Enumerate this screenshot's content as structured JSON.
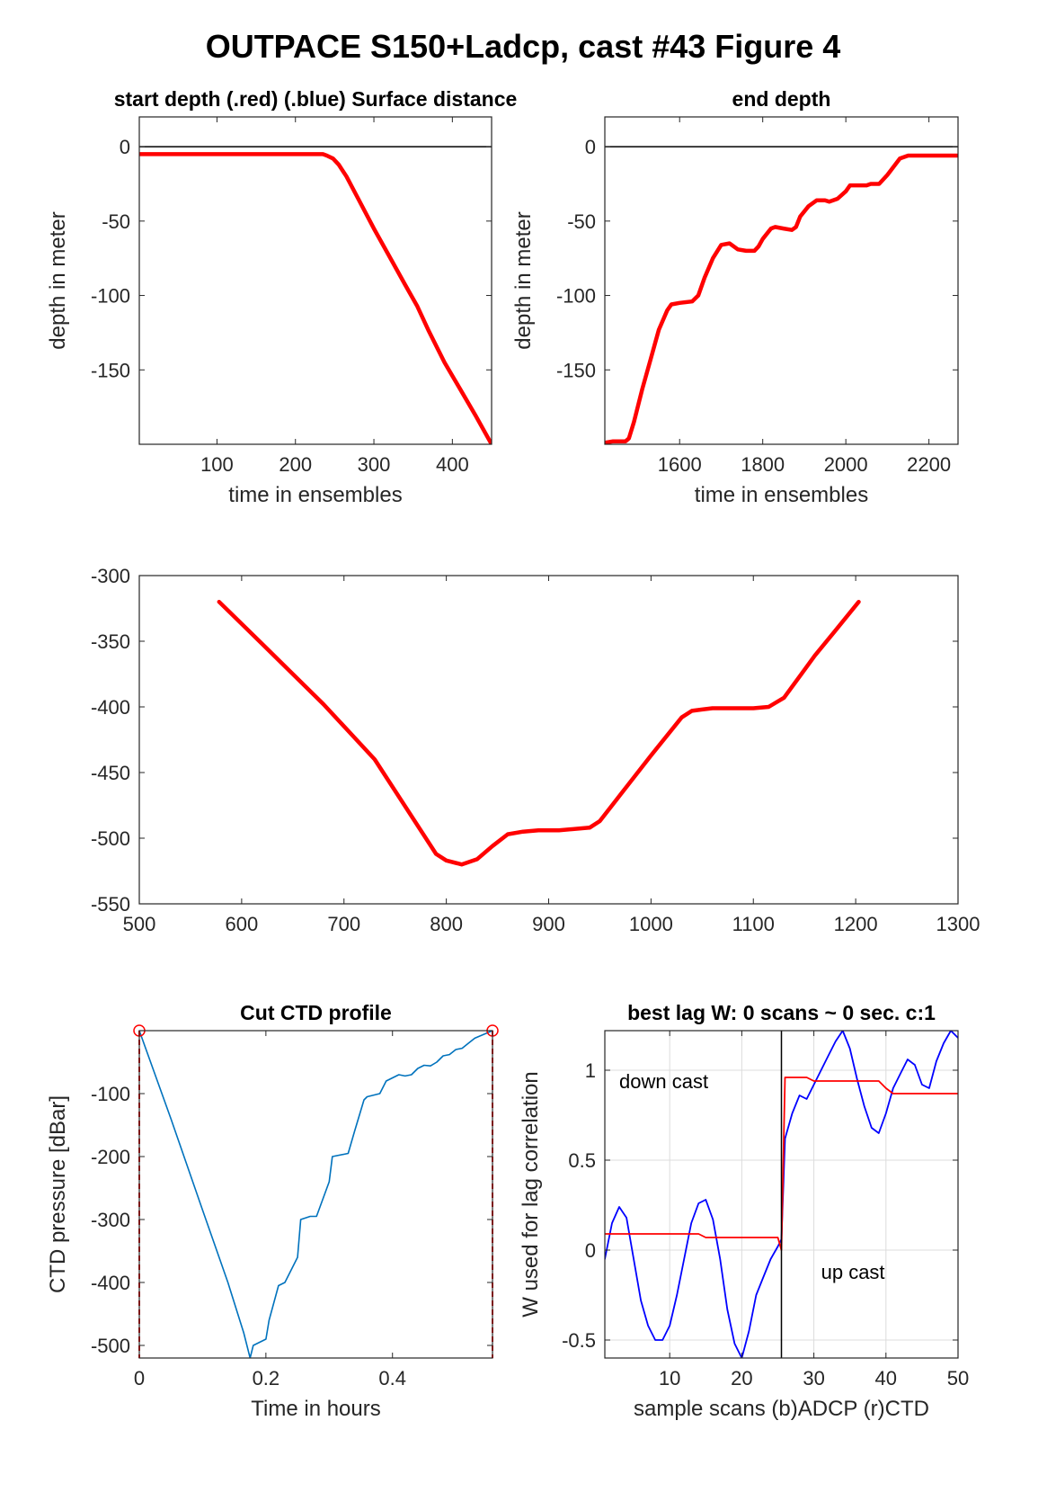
{
  "figure_title": "OUTPACE S150+Ladcp, cast #43   Figure 4",
  "colors": {
    "red": "#ff0000",
    "blue": "#0000ff",
    "ctd": "#0072bd",
    "axis": "#262626",
    "zero": "#000000",
    "grid": "#dcdcdc"
  },
  "chart_data": [
    {
      "id": "start_depth",
      "type": "line",
      "title": "start depth (.red) (.blue) Surface distance",
      "xlabel": "time in ensembles",
      "ylabel": "depth in meter",
      "xlim": [
        1,
        450
      ],
      "ylim": [
        -200,
        20
      ],
      "xticks": [
        100,
        200,
        300,
        400
      ],
      "yticks": [
        0,
        -50,
        -100,
        -150
      ],
      "hline": 0,
      "series": [
        {
          "color": "#ff0000",
          "x": [
            1,
            100,
            200,
            235,
            240,
            248,
            255,
            265,
            280,
            300,
            320,
            340,
            355,
            370,
            390,
            410,
            430,
            450
          ],
          "y": [
            -5,
            -5,
            -5,
            -5,
            -6,
            -8,
            -12,
            -20,
            -35,
            -55,
            -74,
            -93,
            -107,
            -124,
            -145,
            -163,
            -181,
            -200
          ]
        }
      ]
    },
    {
      "id": "end_depth",
      "type": "line",
      "title": "end depth",
      "xlabel": "time in ensembles",
      "ylabel": "depth in meter",
      "xlim": [
        1420,
        2270
      ],
      "ylim": [
        -200,
        20
      ],
      "xticks": [
        1600,
        1800,
        2000,
        2200
      ],
      "yticks": [
        0,
        -50,
        -100,
        -150
      ],
      "hline": 0,
      "series": [
        {
          "color": "#ff0000",
          "x": [
            1420,
            1440,
            1470,
            1478,
            1490,
            1510,
            1530,
            1550,
            1570,
            1580,
            1600,
            1630,
            1645,
            1660,
            1680,
            1700,
            1720,
            1740,
            1760,
            1780,
            1790,
            1800,
            1820,
            1830,
            1850,
            1870,
            1880,
            1890,
            1910,
            1930,
            1950,
            1960,
            1980,
            2000,
            2010,
            2050,
            2060,
            2080,
            2100,
            2130,
            2150,
            2200,
            2270
          ],
          "y": [
            -199,
            -198,
            -198,
            -196,
            -185,
            -163,
            -143,
            -123,
            -110,
            -106,
            -105,
            -104,
            -100,
            -88,
            -75,
            -66,
            -65,
            -69,
            -70,
            -70,
            -67,
            -62,
            -55,
            -54,
            -55,
            -56,
            -54,
            -47,
            -40,
            -36,
            -36,
            -37,
            -35,
            -30,
            -26,
            -26,
            -25,
            -25,
            -19,
            -8,
            -6,
            -6,
            -6
          ]
        }
      ]
    },
    {
      "id": "middle",
      "type": "line",
      "title": "",
      "xlabel": "",
      "ylabel": "",
      "xlim": [
        500,
        1300
      ],
      "ylim": [
        -550,
        -300
      ],
      "xticks": [
        500,
        600,
        700,
        800,
        900,
        1000,
        1100,
        1200,
        1300
      ],
      "yticks": [
        -300,
        -350,
        -400,
        -450,
        -500,
        -550
      ],
      "series": [
        {
          "color": "#ff0000",
          "x": [
            578,
            620,
            680,
            730,
            790,
            800,
            815,
            830,
            845,
            860,
            875,
            890,
            910,
            940,
            950,
            970,
            1000,
            1030,
            1040,
            1050,
            1060,
            1080,
            1100,
            1115,
            1130,
            1160,
            1180,
            1203
          ],
          "y": [
            -320,
            -352,
            -398,
            -440,
            -512,
            -517,
            -520,
            -516,
            -506,
            -497,
            -495,
            -494,
            -494,
            -492,
            -487,
            -467,
            -437,
            -408,
            -403,
            -402,
            -401,
            -401,
            -401,
            -400,
            -393,
            -361,
            -342,
            -320
          ]
        }
      ]
    },
    {
      "id": "cut_ctd",
      "type": "line",
      "title": "Cut CTD profile",
      "xlabel": "Time in hours",
      "ylabel": "CTD pressure [dBar]",
      "xlim": [
        0,
        0.558
      ],
      "ylim": [
        -520,
        0
      ],
      "xticks": [
        0,
        0.2,
        0.4
      ],
      "xticklabels": [
        "0",
        "0.2",
        "0.4"
      ],
      "yticks": [
        -100,
        -200,
        -300,
        -400,
        -500
      ],
      "markers": [
        {
          "x": 0,
          "y": 0
        },
        {
          "x": 0.558,
          "y": 0
        }
      ],
      "vlines": [
        0,
        0.558
      ],
      "series": [
        {
          "color": "#0072bd",
          "x": [
            0,
            0.05,
            0.1,
            0.14,
            0.165,
            0.175,
            0.18,
            0.2,
            0.205,
            0.22,
            0.23,
            0.25,
            0.255,
            0.27,
            0.28,
            0.3,
            0.305,
            0.33,
            0.34,
            0.355,
            0.36,
            0.38,
            0.39,
            0.41,
            0.42,
            0.43,
            0.44,
            0.45,
            0.46,
            0.47,
            0.48,
            0.49,
            0.5,
            0.51,
            0.52,
            0.53,
            0.558
          ],
          "y": [
            0,
            -140,
            -285,
            -400,
            -480,
            -520,
            -500,
            -490,
            -460,
            -405,
            -400,
            -360,
            -300,
            -295,
            -295,
            -240,
            -200,
            -195,
            -160,
            -110,
            -105,
            -100,
            -80,
            -70,
            -72,
            -70,
            -60,
            -55,
            -56,
            -50,
            -40,
            -38,
            -30,
            -28,
            -20,
            -12,
            0
          ]
        }
      ]
    },
    {
      "id": "best_lag",
      "type": "line",
      "title": "best lag W: 0 scans ~ 0 sec.  c:1",
      "xlabel": "sample scans (b)ADCP (r)CTD",
      "ylabel": "W used for lag correlation",
      "xlim": [
        1,
        50
      ],
      "ylim": [
        -0.6,
        1.22
      ],
      "xticks": [
        10,
        20,
        30,
        40,
        50
      ],
      "yticks": [
        1,
        0.5,
        0,
        -0.5
      ],
      "yticklabels": [
        "1",
        "0.5",
        "0",
        "-0.5"
      ],
      "grid": true,
      "vline": 25.5,
      "annotations": [
        {
          "text": "down cast",
          "x": 3,
          "y": 0.9
        },
        {
          "text": "up cast",
          "x": 31,
          "y": -0.16
        }
      ],
      "series": [
        {
          "name": "ADCP",
          "color": "#0000ff",
          "x": [
            1,
            2,
            3,
            4,
            5,
            6,
            7,
            8,
            9,
            10,
            11,
            12,
            13,
            14,
            15,
            16,
            17,
            18,
            19,
            20,
            21,
            22,
            23,
            24,
            25,
            25.5,
            26,
            27,
            28,
            29,
            30,
            31,
            32,
            33,
            34,
            35,
            36,
            37,
            38,
            39,
            40,
            41,
            42,
            43,
            44,
            45,
            46,
            47,
            48,
            49,
            50
          ],
          "y": [
            -0.05,
            0.15,
            0.24,
            0.18,
            -0.05,
            -0.28,
            -0.42,
            -0.5,
            -0.5,
            -0.42,
            -0.25,
            -0.05,
            0.15,
            0.26,
            0.28,
            0.17,
            -0.05,
            -0.33,
            -0.52,
            -0.6,
            -0.45,
            -0.25,
            -0.15,
            -0.05,
            0.02,
            0.06,
            0.62,
            0.76,
            0.86,
            0.84,
            0.92,
            1.0,
            1.08,
            1.16,
            1.22,
            1.12,
            0.95,
            0.8,
            0.68,
            0.65,
            0.76,
            0.9,
            0.98,
            1.06,
            1.03,
            0.92,
            0.9,
            1.05,
            1.15,
            1.22,
            1.18
          ]
        },
        {
          "name": "CTD",
          "color": "#ff0000",
          "x": [
            1,
            10,
            14,
            15,
            25,
            25.5,
            26,
            29,
            30,
            39,
            40,
            41,
            50
          ],
          "y": [
            0.09,
            0.09,
            0.09,
            0.07,
            0.07,
            0.0,
            0.96,
            0.96,
            0.94,
            0.94,
            0.9,
            0.87,
            0.87
          ]
        }
      ]
    }
  ]
}
